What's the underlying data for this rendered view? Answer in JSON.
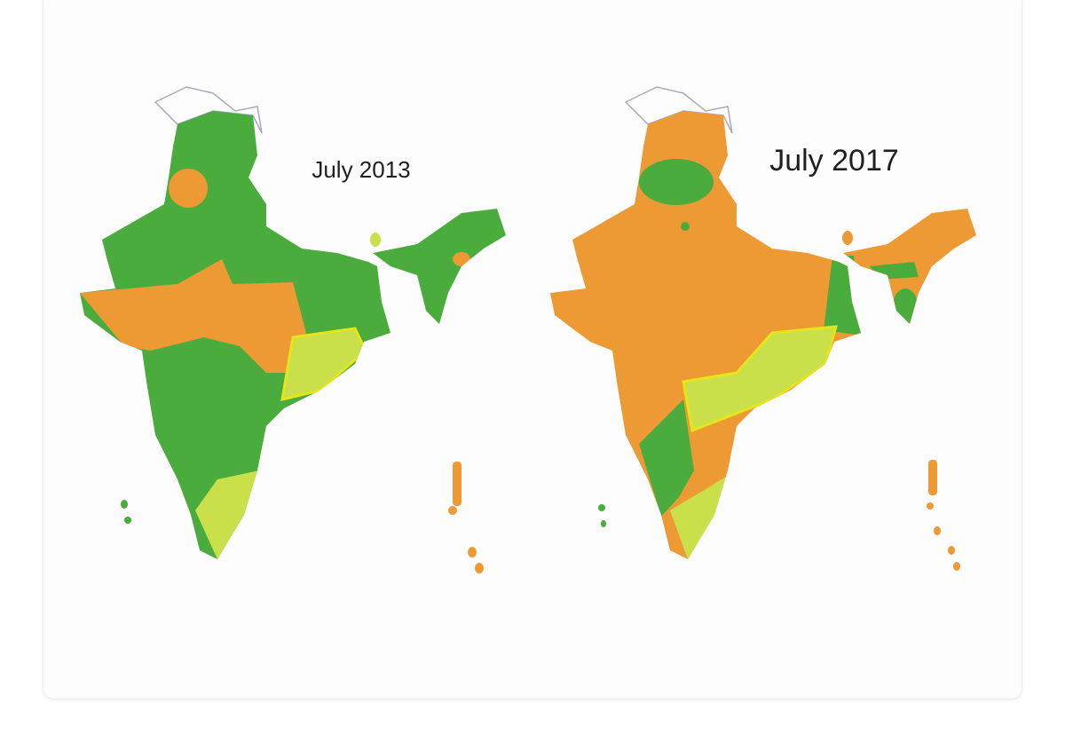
{
  "maps": [
    {
      "label": "July 2013"
    },
    {
      "label": "July 2017"
    }
  ]
}
